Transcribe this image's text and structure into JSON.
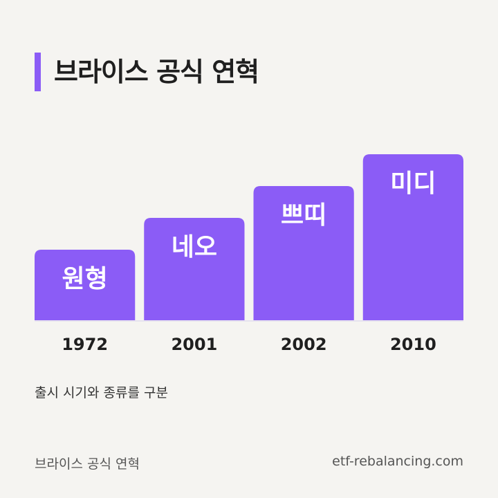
{
  "title": "브라이스 공식 연혁",
  "caption": "출시 시기와 종류를 구분",
  "footer": {
    "left": "브라이스 공식 연혁",
    "right": "etf-rebalancing.com"
  },
  "colors": {
    "accent": "#8b5cf6",
    "bar": "#8b5cf6",
    "bar_label": "#ffffff",
    "year_label": "#1f1f1f"
  },
  "chart_data": {
    "type": "bar",
    "title": "",
    "xlabel": "",
    "ylabel": "",
    "categories": [
      "1972",
      "2001",
      "2002",
      "2010"
    ],
    "labels": [
      "원형",
      "네오",
      "쁘띠",
      "미디"
    ],
    "values": [
      1,
      2,
      3,
      4
    ],
    "ylim": [
      0,
      4
    ],
    "grid": false
  }
}
